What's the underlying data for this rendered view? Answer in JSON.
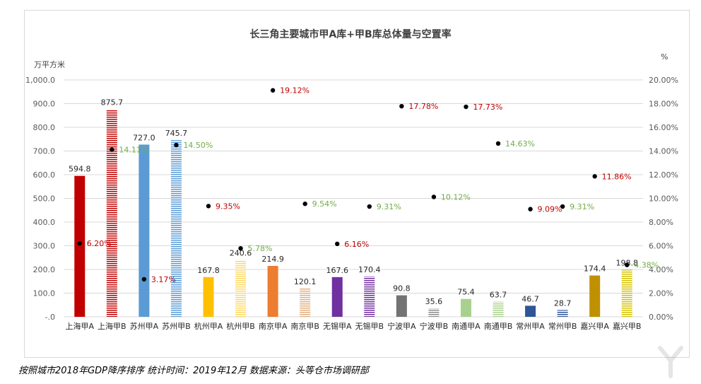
{
  "chart_data": {
    "type": "bar",
    "title": "长三角主要城市甲A库+甲B库总体量与空置率",
    "ylabel": "万平方米",
    "y2label": "%",
    "ylim": [
      0,
      1000
    ],
    "y2lim": [
      0,
      20
    ],
    "yticks": [
      "-.0",
      "100.0",
      "200.0",
      "300.0",
      "400.0",
      "500.0",
      "600.0",
      "700.0",
      "800.0",
      "900.0",
      "1,000.0"
    ],
    "y2ticks": [
      "0.00%",
      "2.00%",
      "4.00%",
      "6.00%",
      "8.00%",
      "10.00%",
      "12.00%",
      "14.00%",
      "16.00%",
      "18.00%",
      "20.00%"
    ],
    "categories": [
      "上海甲A",
      "上海甲B",
      "苏州甲A",
      "苏州甲B",
      "杭州甲A",
      "杭州甲B",
      "南京甲A",
      "南京甲B",
      "无锡甲A",
      "无锡甲B",
      "宁波甲A",
      "宁波甲B",
      "南通甲A",
      "南通甲B",
      "常州甲A",
      "常州甲B",
      "嘉兴甲A",
      "嘉兴甲B"
    ],
    "series": [
      {
        "name": "总体量",
        "axis": "left",
        "values": [
          594.8,
          875.7,
          727.0,
          745.7,
          167.8,
          240.6,
          214.9,
          120.1,
          167.6,
          170.4,
          90.8,
          35.6,
          75.4,
          63.7,
          46.7,
          28.7,
          174.4,
          198.8
        ],
        "labels": [
          "594.8",
          "875.7",
          "727.0",
          "745.7",
          "167.8",
          "240.6",
          "214.9",
          "120.1",
          "167.6",
          "170.4",
          "90.8",
          "35.6",
          "75.4",
          "63.7",
          "46.7",
          "28.7",
          "174.4",
          "198.8"
        ]
      },
      {
        "name": "空置率",
        "axis": "right",
        "values": [
          6.2,
          14.11,
          3.17,
          14.5,
          9.35,
          5.78,
          19.12,
          9.54,
          6.16,
          9.31,
          17.78,
          10.12,
          17.73,
          14.63,
          9.09,
          9.31,
          11.86,
          4.38
        ],
        "labels": [
          "6.20%",
          "14.11%",
          "3.17%",
          "14.50%",
          "9.35%",
          "5.78%",
          "19.12%",
          "9.54%",
          "6.16%",
          "9.31%",
          "17.78%",
          "10.12%",
          "17.73%",
          "14.63%",
          "9.09%",
          "9.31%",
          "11.86%",
          "4.38%"
        ]
      }
    ],
    "colors": {
      "bars": [
        "#c00000",
        "#c00000",
        "#5b9bd5",
        "#5b9bd5",
        "#ffc000",
        "#ffd966",
        "#ed7d31",
        "#e0b080",
        "#7030a0",
        "#7030a0",
        "#737373",
        "#8c8c8c",
        "#a9d18e",
        "#a9d18e",
        "#2e5597",
        "#2e5597",
        "#bf9000",
        "#d4c000"
      ],
      "striped": [
        false,
        true,
        false,
        true,
        false,
        true,
        false,
        true,
        false,
        true,
        false,
        true,
        false,
        true,
        false,
        true,
        false,
        true
      ],
      "rate_label_colors": [
        "#c00000",
        "#70ad47",
        "#c00000",
        "#70ad47",
        "#c00000",
        "#70ad47",
        "#c00000",
        "#70ad47",
        "#c00000",
        "#70ad47",
        "#c00000",
        "#70ad47",
        "#c00000",
        "#70ad47",
        "#c00000",
        "#70ad47",
        "#c00000",
        "#70ad47"
      ],
      "grid": "#d9d9d9",
      "axis_text": "#595959"
    }
  },
  "footnote": "按照城市2018年GDP降序排序  统计时间：2019年12月 数据来源：头等仓市场调研部",
  "watermark_icon": "yiou-logo-icon"
}
